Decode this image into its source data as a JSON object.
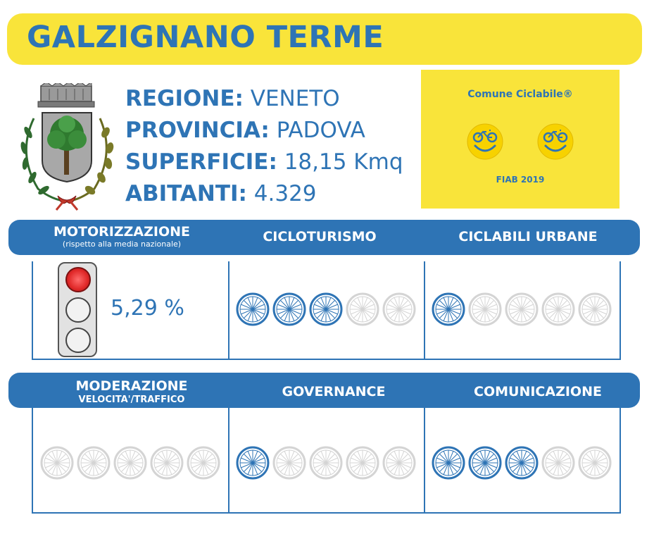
{
  "title": "GALZIGNANO TERME",
  "info": [
    {
      "label": "REGIONE:",
      "value": "VENETO"
    },
    {
      "label": "PROVINCIA:",
      "value": "PADOVA"
    },
    {
      "label": "SUPERFICIE:",
      "value": "18,15 Kmq"
    },
    {
      "label": "ABITANTI:",
      "value": "4.329"
    }
  ],
  "badge": {
    "title": "Comune Ciclabile®",
    "footer": "FIAB 2019",
    "icons": [
      "bicycle-smile-icon",
      "bicycle-smile-icon"
    ]
  },
  "colors": {
    "accent": "#2e74b5",
    "yellow": "#f9e43a",
    "wheel_active": "#2e74b5",
    "wheel_inactive": "#d4d4d4"
  },
  "row1": {
    "motorizzazione": {
      "label": "MOTORIZZAZIONE",
      "sublabel": "(rispetto alla media nazionale)",
      "value": "5,29 %",
      "traffic_light_state": "red"
    },
    "cicloturismo": {
      "label": "CICLOTURISMO",
      "rating": 3,
      "max": 5
    },
    "ciclabili_urbane": {
      "label": "CICLABILI URBANE",
      "rating": 1,
      "max": 5
    }
  },
  "row2": {
    "moderazione": {
      "label": "MODERAZIONE",
      "sublabel": "VELOCITA'/TRAFFICO",
      "rating": 0,
      "max": 5
    },
    "governance": {
      "label": "GOVERNANCE",
      "rating": 1,
      "max": 5
    },
    "comunicazione": {
      "label": "COMUNICAZIONE",
      "rating": 3,
      "max": 5
    }
  }
}
